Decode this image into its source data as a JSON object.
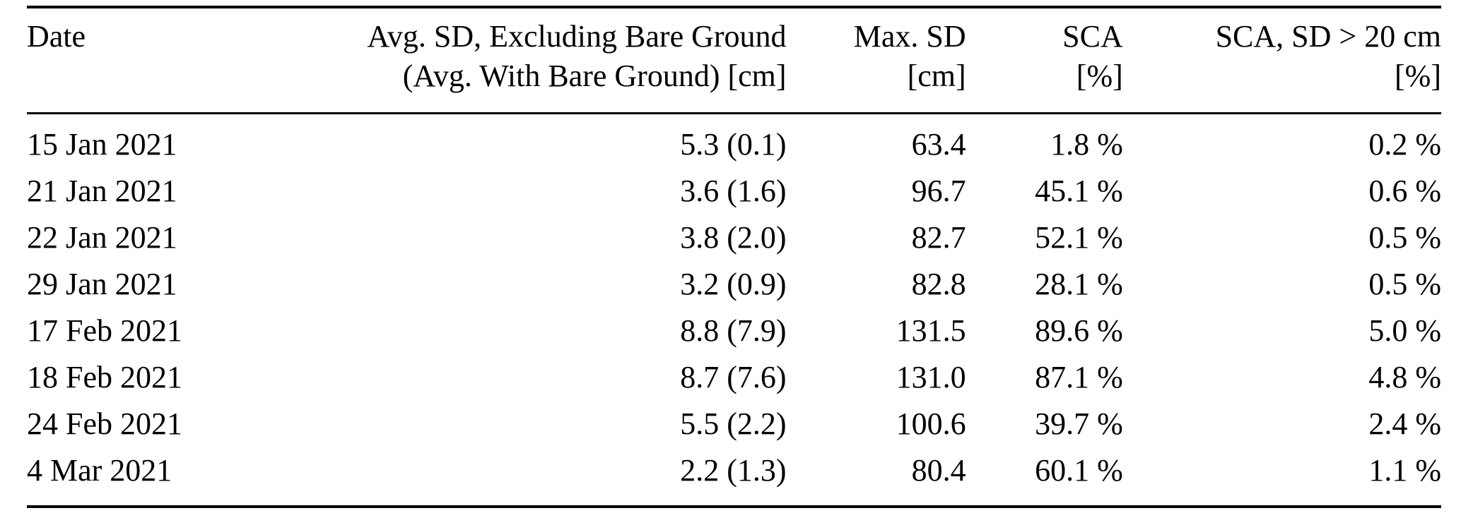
{
  "table": {
    "columns": [
      {
        "id": "date",
        "h1": "Date",
        "h2": ""
      },
      {
        "id": "avg_sd",
        "h1": "Avg. SD, Excluding Bare Ground",
        "h2": "(Avg. With Bare Ground) [cm]"
      },
      {
        "id": "max_sd",
        "h1": "Max. SD",
        "h2": "[cm]"
      },
      {
        "id": "sca",
        "h1": "SCA",
        "h2": "[%]"
      },
      {
        "id": "sca_sd20",
        "h1": "SCA, SD > 20 cm",
        "h2": "[%]"
      }
    ],
    "rows": [
      [
        "15 Jan 2021",
        "5.3 (0.1)",
        "63.4",
        "1.8 %",
        "0.2 %"
      ],
      [
        "21 Jan 2021",
        "3.6 (1.6)",
        "96.7",
        "45.1 %",
        "0.6 %"
      ],
      [
        "22 Jan 2021",
        "3.8 (2.0)",
        "82.7",
        "52.1 %",
        "0.5 %"
      ],
      [
        "29 Jan 2021",
        "3.2 (0.9)",
        "82.8",
        "28.1 %",
        "0.5 %"
      ],
      [
        "17 Feb 2021",
        "8.8 (7.9)",
        "131.5",
        "89.6 %",
        "5.0 %"
      ],
      [
        "18 Feb 2021",
        "8.7 (7.6)",
        "131.0",
        "87.1 %",
        "4.8 %"
      ],
      [
        "24 Feb 2021",
        "5.5 (2.2)",
        "100.6",
        "39.7 %",
        "2.4 %"
      ],
      [
        "4 Mar 2021",
        "2.2 (1.3)",
        "80.4",
        "60.1 %",
        "1.1 %"
      ]
    ]
  }
}
